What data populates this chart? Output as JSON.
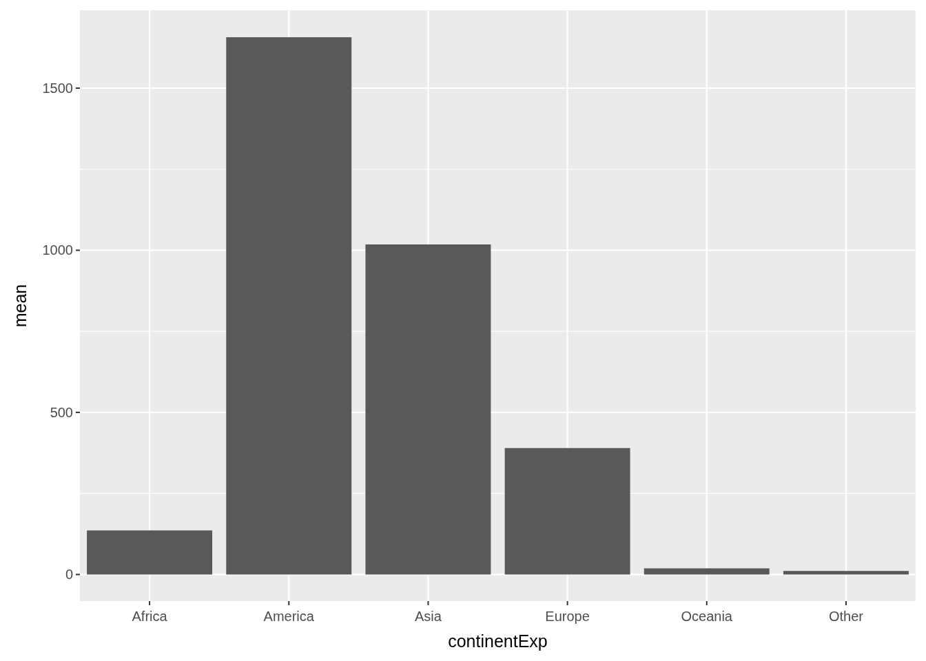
{
  "chart_data": {
    "type": "bar",
    "xlabel": "continentExp",
    "ylabel": "mean",
    "categories": [
      "Africa",
      "America",
      "Asia",
      "Europe",
      "Oceania",
      "Other"
    ],
    "values": [
      136,
      1657,
      1018,
      390,
      19,
      11
    ],
    "color": "#595959",
    "ylim": [
      -82,
      1740
    ],
    "yticks": [
      0,
      500,
      1000,
      1500
    ],
    "grid": true
  }
}
